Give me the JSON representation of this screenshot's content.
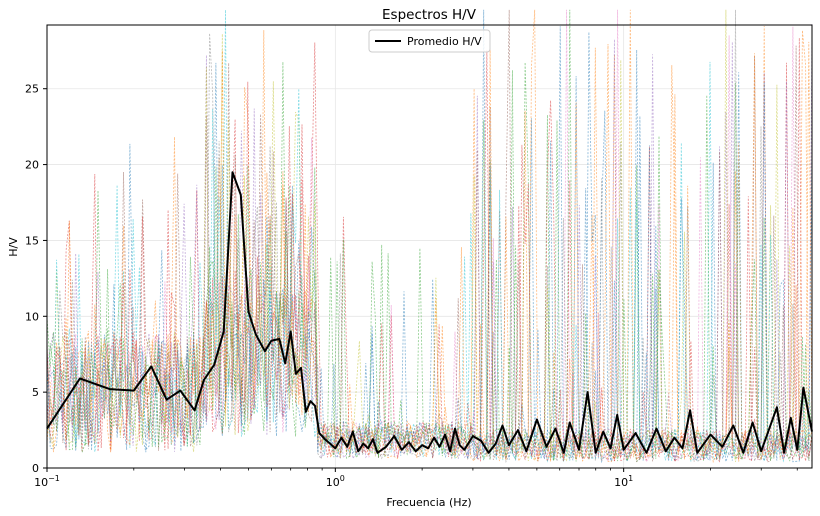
{
  "chart_data": {
    "type": "line",
    "title": "Espectros H/V",
    "xlabel": "Frecuencia (Hz)",
    "ylabel": "H/V",
    "xscale": "log",
    "xlim": [
      0.1,
      45
    ],
    "ylim": [
      0,
      29.2
    ],
    "grid": true,
    "legend_position": "top-center",
    "x_ticks": [
      {
        "value": 0.1,
        "label": "10",
        "exp": "−1"
      },
      {
        "value": 1,
        "label": "10",
        "exp": "0"
      },
      {
        "value": 10,
        "label": "10",
        "exp": "1"
      }
    ],
    "y_ticks": [
      0,
      5,
      10,
      15,
      20,
      25
    ],
    "y_tick_labels": [
      "0",
      "5",
      "10",
      "15",
      "20",
      "25"
    ],
    "series": [
      {
        "name": "Promedio H/V",
        "color": "#000000",
        "x": [
          0.1,
          0.13,
          0.165,
          0.2,
          0.23,
          0.26,
          0.29,
          0.325,
          0.35,
          0.38,
          0.41,
          0.44,
          0.47,
          0.5,
          0.53,
          0.57,
          0.6,
          0.64,
          0.67,
          0.7,
          0.73,
          0.76,
          0.79,
          0.82,
          0.85,
          0.88,
          0.92,
          0.96,
          1.0,
          1.05,
          1.1,
          1.15,
          1.2,
          1.25,
          1.3,
          1.35,
          1.4,
          1.5,
          1.6,
          1.7,
          1.8,
          1.9,
          2.0,
          2.1,
          2.2,
          2.3,
          2.4,
          2.5,
          2.6,
          2.7,
          2.8,
          3.0,
          3.2,
          3.4,
          3.6,
          3.8,
          4.0,
          4.3,
          4.6,
          5.0,
          5.4,
          5.8,
          6.2,
          6.5,
          7.0,
          7.5,
          8.0,
          8.5,
          9.0,
          9.5,
          10.0,
          11.0,
          12.0,
          13.0,
          14.0,
          15.0,
          16.0,
          17.0,
          18.0,
          20.0,
          22.0,
          24.0,
          26.0,
          28.0,
          30.0,
          32.0,
          34.0,
          36.0,
          38.0,
          40.0,
          42.0,
          45.0
        ],
        "y": [
          2.6,
          5.9,
          5.2,
          5.1,
          6.7,
          4.5,
          5.1,
          3.8,
          5.8,
          6.8,
          9.0,
          19.5,
          18.0,
          10.3,
          8.8,
          7.7,
          8.4,
          8.5,
          6.9,
          9.0,
          6.2,
          6.6,
          3.7,
          4.4,
          4.1,
          2.3,
          1.9,
          1.6,
          1.3,
          2.0,
          1.4,
          2.4,
          1.1,
          1.6,
          1.3,
          1.9,
          1.0,
          1.4,
          2.1,
          1.2,
          1.7,
          1.1,
          1.5,
          1.3,
          2.0,
          1.4,
          2.2,
          1.1,
          2.6,
          1.5,
          1.2,
          2.1,
          1.8,
          1.0,
          1.6,
          2.8,
          1.5,
          2.5,
          1.1,
          3.2,
          1.4,
          2.6,
          1.0,
          3.0,
          1.2,
          5.0,
          1.0,
          2.4,
          1.3,
          3.5,
          1.2,
          2.3,
          1.0,
          2.6,
          1.1,
          2.0,
          1.3,
          3.8,
          1.0,
          2.2,
          1.4,
          2.8,
          1.0,
          3.0,
          1.1,
          2.6,
          4.0,
          1.0,
          3.3,
          1.2,
          5.3,
          2.4
        ]
      }
    ],
    "background_series_colors": [
      "#1f77b4",
      "#ff7f0e",
      "#2ca02c",
      "#d62728",
      "#9467bd",
      "#8c564b",
      "#e377c2",
      "#7f7f7f",
      "#bcbd22",
      "#17becf"
    ]
  }
}
